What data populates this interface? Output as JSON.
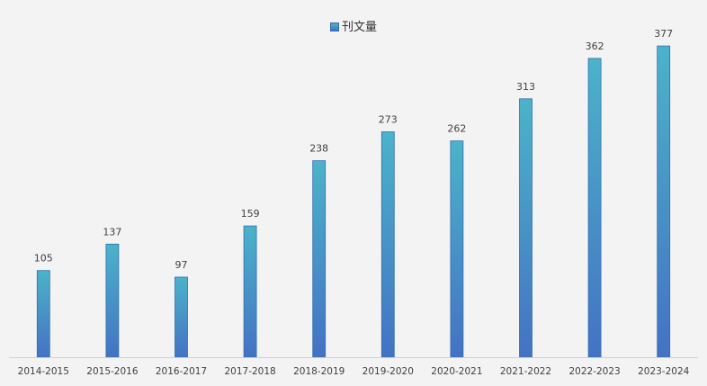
{
  "legend": {
    "label": "刊文量"
  },
  "colors": {
    "bar_top": "#4bb3c9",
    "bar_bottom": "#4472c4",
    "bar_stroke": "#2f6fb0",
    "axis": "#d0d0d0"
  },
  "chart_data": {
    "type": "bar",
    "title": "",
    "xlabel": "",
    "ylabel": "",
    "ylim": [
      0,
      400
    ],
    "grid": false,
    "legend_position": "top-center",
    "categories": [
      "2014-2015",
      "2015-2016",
      "2016-2017",
      "2017-2018",
      "2018-2019",
      "2019-2020",
      "2020-2021",
      "2021-2022",
      "2022-2023",
      "2023-2024"
    ],
    "series": [
      {
        "name": "刊文量",
        "values": [
          105,
          137,
          97,
          159,
          238,
          273,
          262,
          313,
          362,
          377
        ]
      }
    ]
  }
}
